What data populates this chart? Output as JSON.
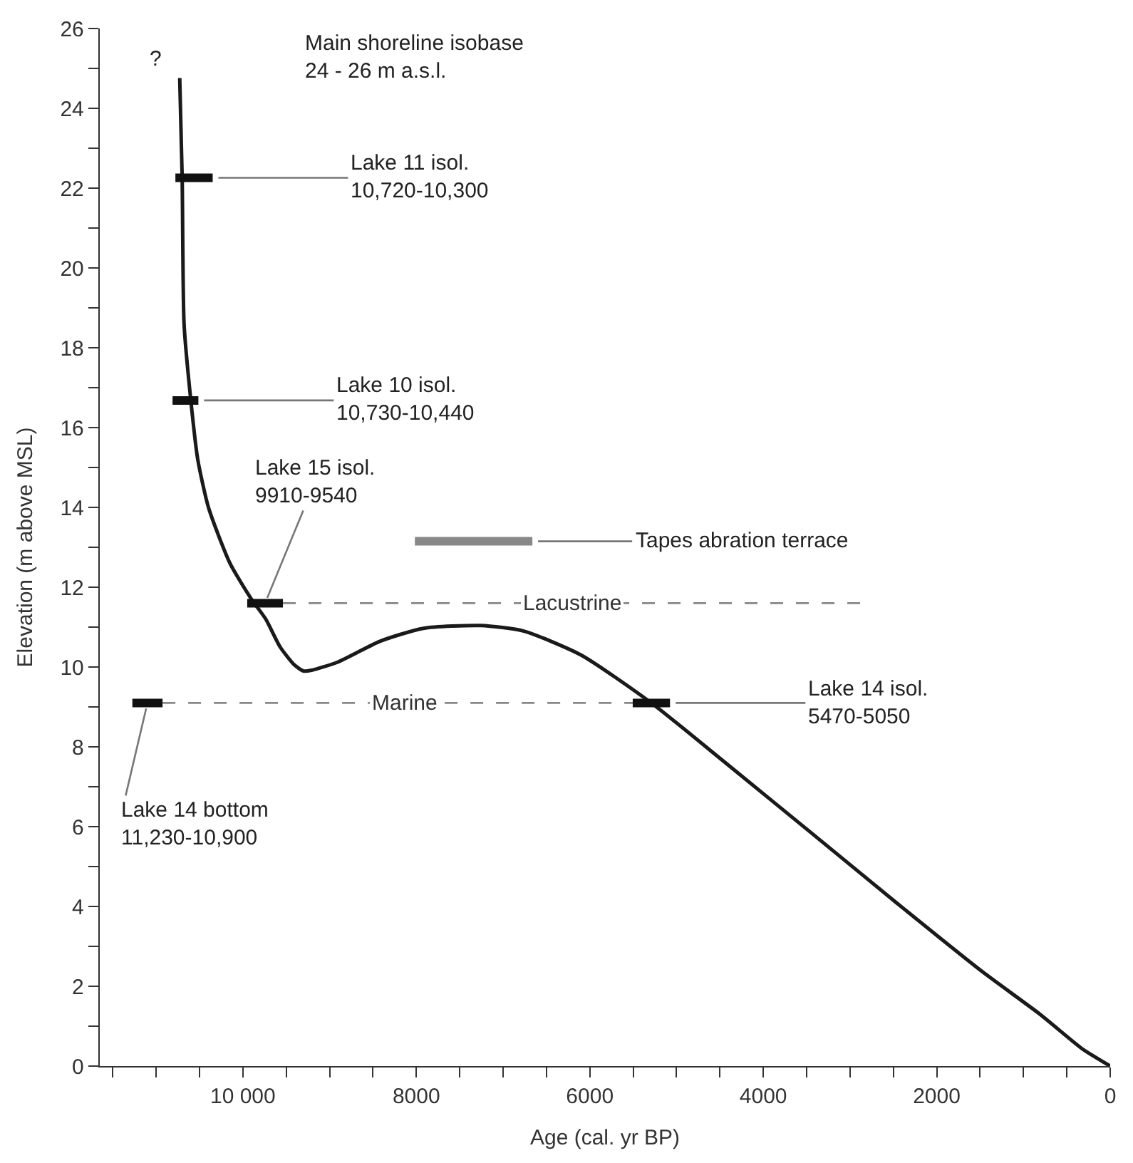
{
  "chart_data": {
    "type": "line",
    "xlabel": "Age (cal. yr BP)",
    "ylabel": "Elevation (m above MSL)",
    "xlim": [
      11650,
      0
    ],
    "ylim": [
      0,
      26
    ],
    "xticks": [
      {
        "value": 11500,
        "label": null
      },
      {
        "value": 11000,
        "label": null
      },
      {
        "value": 10500,
        "label": null
      },
      {
        "value": 10000,
        "label": "10 000"
      },
      {
        "value": 9500,
        "label": null
      },
      {
        "value": 9000,
        "label": null
      },
      {
        "value": 8500,
        "label": null
      },
      8000,
      {
        "value": 7500,
        "label": null
      },
      {
        "value": 7000,
        "label": null
      },
      {
        "value": 6500,
        "label": null
      },
      6000,
      {
        "value": 5500,
        "label": null
      },
      {
        "value": 5000,
        "label": null
      },
      {
        "value": 4500,
        "label": null
      },
      4000,
      {
        "value": 3500,
        "label": null
      },
      {
        "value": 3000,
        "label": null
      },
      {
        "value": 2500,
        "label": null
      },
      2000,
      {
        "value": 1500,
        "label": null
      },
      {
        "value": 1000,
        "label": null
      },
      {
        "value": 500,
        "label": null
      },
      0
    ],
    "yticks": [
      0,
      {
        "value": 1,
        "label": null
      },
      2,
      {
        "value": 3,
        "label": null
      },
      4,
      {
        "value": 5,
        "label": null
      },
      6,
      {
        "value": 7,
        "label": null
      },
      8,
      {
        "value": 9,
        "label": null
      },
      10,
      {
        "value": 11,
        "label": null
      },
      12,
      {
        "value": 13,
        "label": null
      },
      14,
      {
        "value": 15,
        "label": null
      },
      16,
      {
        "value": 17,
        "label": null
      },
      18,
      {
        "value": 19,
        "label": null
      },
      20,
      {
        "value": 21,
        "label": null
      },
      22,
      {
        "value": 23,
        "label": null
      },
      24,
      {
        "value": 25,
        "label": null
      },
      26
    ],
    "series": [
      {
        "color": "#1a1a1a",
        "x": [
          10728,
          10700,
          10678,
          10600,
          10520,
          10397,
          10149,
          9901,
          9736,
          9570,
          9405,
          9300,
          9207,
          8909,
          8414,
          7918,
          7257,
          6761,
          6100,
          5290,
          4447,
          3455,
          2463,
          1471,
          810,
          314,
          0
        ],
        "values": [
          24.76,
          22.26,
          18.6,
          16.68,
          15.2,
          14.0,
          12.6,
          11.7,
          11.2,
          10.5,
          10.05,
          9.9,
          9.92,
          10.12,
          10.65,
          10.97,
          11.04,
          10.9,
          10.3,
          9.1,
          7.62,
          5.86,
          4.09,
          2.36,
          1.3,
          0.42,
          0
        ]
      },
      {
        "type": "line",
        "name": "Marine",
        "color": "#888888",
        "line_style": "dashed",
        "x": [
          10926,
          5356
        ],
        "values": [
          9.1,
          9.1
        ]
      },
      {
        "type": "line",
        "name": "Lacustrine",
        "color": "#888888",
        "line_style": "dashed",
        "x": [
          9538,
          2876
        ],
        "values": [
          11.6,
          11.6
        ]
      },
      {
        "type": "line",
        "color": "#888888",
        "x": [
          8017,
          6662
        ],
        "values": [
          13.15,
          13.15
        ]
      },
      {
        "type": "line",
        "color": "#111111",
        "x": [
          10778,
          10348
        ],
        "values": [
          22.26,
          22.26
        ]
      },
      {
        "type": "line",
        "color": "#111111",
        "x": [
          10811,
          10513
        ],
        "values": [
          16.68,
          16.68
        ]
      },
      {
        "type": "line",
        "color": "#111111",
        "x": [
          9950,
          9538
        ],
        "values": [
          11.6,
          11.6
        ]
      },
      {
        "type": "line",
        "color": "#111111",
        "x": [
          5505,
          5075
        ],
        "values": [
          9.1,
          9.1
        ]
      },
      {
        "type": "line",
        "color": "#111111",
        "x": [
          11274,
          10926
        ],
        "values": [
          9.1,
          9.1
        ]
      }
    ],
    "annotations": [
      "Main shoreline isobase\n24 - 26 m a.s.l.",
      "?",
      {
        "text": "Lake 11 isol.\n10,720-10,300",
        "x": 10348,
        "y": 22.26
      },
      {
        "text": "Lake 10 isol.\n10,730-10,440",
        "x": 10513,
        "y": 16.68
      },
      {
        "text": "Lake 15 isol.\n9910-9540",
        "x": 9744,
        "y": 11.6
      },
      {
        "text": "Tapes abration terrace",
        "x": 6662,
        "y": 13.15
      },
      {
        "text": "Lake 14 isol.\n5470-5050",
        "x": 5075,
        "y": 9.1
      },
      {
        "text": "Lake 14 bottom\n11,230-10,900",
        "x": 11100,
        "y": 9.1
      }
    ]
  }
}
